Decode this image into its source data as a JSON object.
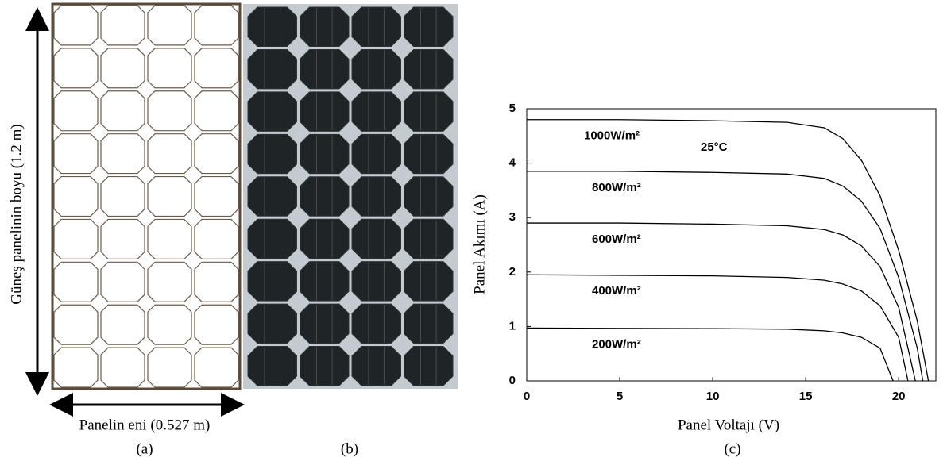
{
  "panel_a": {
    "height_label": "Güneş panelinin boyu (1.2 m)",
    "width_label": "Panelin eni (0.527 m)",
    "caption": "(a)"
  },
  "panel_b": {
    "caption": "(b)"
  },
  "chart_data": {
    "type": "line",
    "caption": "(c)",
    "x_label": "Panel Voltajı (V)",
    "y_label": "Panel Akımı (A)",
    "annotation": "25°C",
    "xlim": [
      0,
      22
    ],
    "ylim": [
      0,
      5
    ],
    "xticks": [
      0,
      5,
      10,
      15,
      20
    ],
    "yticks": [
      0,
      1,
      2,
      3,
      4,
      5
    ],
    "series": [
      {
        "name": "1000W/m²",
        "color": "#000000",
        "x": [
          0,
          5,
          10,
          14,
          16,
          17,
          18,
          19,
          20,
          21,
          21.6
        ],
        "values": [
          4.8,
          4.8,
          4.78,
          4.75,
          4.65,
          4.45,
          4.05,
          3.4,
          2.4,
          1.1,
          0
        ]
      },
      {
        "name": "800W/m²",
        "color": "#000000",
        "x": [
          0,
          5,
          10,
          14,
          16,
          17,
          18,
          19,
          20,
          21,
          21.3
        ],
        "values": [
          3.85,
          3.85,
          3.83,
          3.8,
          3.72,
          3.58,
          3.3,
          2.8,
          1.9,
          0.6,
          0
        ]
      },
      {
        "name": "600W/m²",
        "color": "#000000",
        "x": [
          0,
          5,
          10,
          14,
          16,
          17,
          18,
          19,
          20,
          20.9
        ],
        "values": [
          2.9,
          2.9,
          2.88,
          2.85,
          2.78,
          2.68,
          2.48,
          2.1,
          1.35,
          0
        ]
      },
      {
        "name": "400W/m²",
        "color": "#000000",
        "x": [
          0,
          10,
          14,
          16,
          17,
          18,
          19,
          20,
          20.5
        ],
        "values": [
          1.95,
          1.93,
          1.9,
          1.85,
          1.78,
          1.65,
          1.38,
          0.8,
          0
        ]
      },
      {
        "name": "200W/m²",
        "color": "#000000",
        "x": [
          0,
          10,
          14,
          16,
          17,
          18,
          19,
          19.7
        ],
        "values": [
          0.97,
          0.96,
          0.95,
          0.92,
          0.88,
          0.8,
          0.6,
          0
        ]
      }
    ]
  }
}
